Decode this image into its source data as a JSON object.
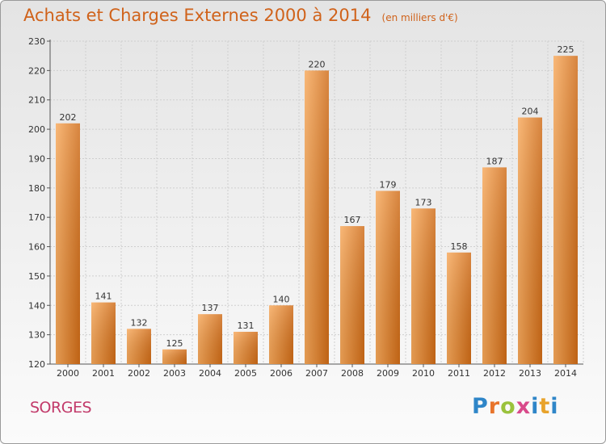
{
  "title": "Achats et Charges Externes 2000 à 2014",
  "subtitle": "(en milliers d'€)",
  "commune": "SORGES",
  "logo": "Proxiti",
  "colors": {
    "bar_light": "#f7a85a",
    "bar_dark": "#cf6b16",
    "title": "#d0621a",
    "commune": "#c23a6a"
  },
  "chart_data": {
    "type": "bar",
    "title": "Achats et Charges Externes 2000 à 2014",
    "subtitle": "(en milliers d'€)",
    "xlabel": "",
    "ylabel": "",
    "categories": [
      "2000",
      "2001",
      "2002",
      "2003",
      "2004",
      "2005",
      "2006",
      "2007",
      "2008",
      "2009",
      "2010",
      "2011",
      "2012",
      "2013",
      "2014"
    ],
    "values": [
      202,
      141,
      132,
      125,
      137,
      131,
      140,
      220,
      167,
      179,
      173,
      158,
      187,
      204,
      225
    ],
    "ylim": [
      120,
      230
    ],
    "yticks": [
      120,
      130,
      140,
      150,
      160,
      170,
      180,
      190,
      200,
      210,
      220,
      230
    ],
    "grid": true,
    "legend": "none"
  }
}
